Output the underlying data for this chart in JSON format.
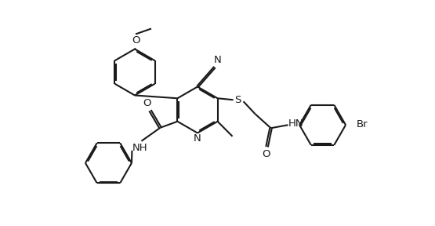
{
  "bg_color": "#ffffff",
  "line_color": "#1a1a1a",
  "lw": 1.5,
  "figsize": [
    5.55,
    2.88
  ],
  "dpi": 100,
  "xlim": [
    0,
    5.55
  ],
  "ylim": [
    0,
    2.88
  ]
}
